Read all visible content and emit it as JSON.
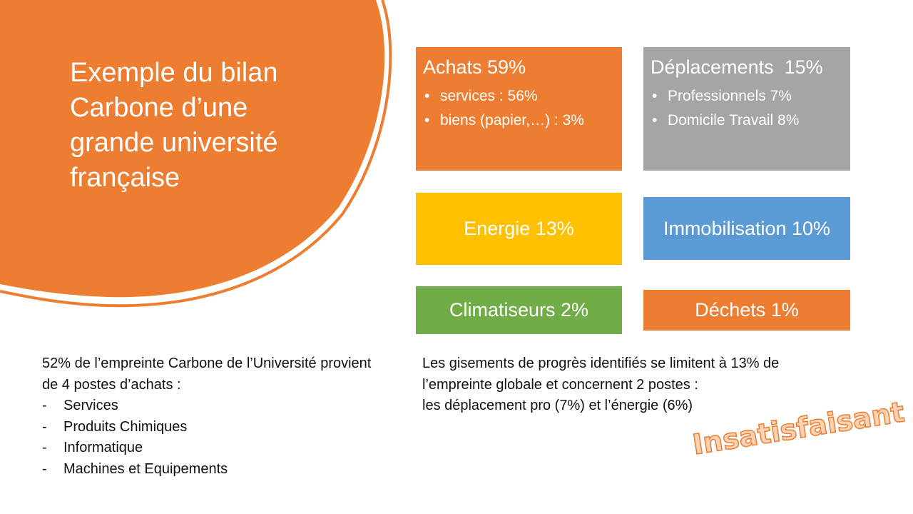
{
  "colors": {
    "orange": "#ed7d31",
    "gray": "#a5a5a5",
    "yellow": "#ffc000",
    "blue": "#5b9bd5",
    "green": "#70ad47"
  },
  "title": "Exemple du bilan Carbone d’une grande université française",
  "boxes": {
    "achats": {
      "label": "Achats 59%",
      "items": [
        "services : 56%",
        "biens (papier,…) : 3%"
      ]
    },
    "deplacements": {
      "label": "Déplacements  15%",
      "items": [
        "Professionnels 7%",
        "Domicile Travail 8%"
      ]
    },
    "energie": {
      "label": "Energie 13%"
    },
    "immobilisation": {
      "label": "Immobilisation 10%"
    },
    "climatiseurs": {
      "label": "Climatiseurs 2%"
    },
    "dechets": {
      "label": "Déchets 1%"
    }
  },
  "left_text": {
    "intro": "52% de l’empreinte Carbone de l’Université provient de 4 postes d’achats :",
    "items": [
      "Services",
      "Produits Chimiques",
      "Informatique",
      "Machines et Equipements"
    ]
  },
  "right_text": {
    "lines": [
      "Les gisements de progrès identifiés se limitent à 13% de",
      "l’empreinte globale et concernent 2 postes :",
      "les déplacement pro (7%) et l’énergie (6%)"
    ]
  },
  "stamp": "Insatisfaisant"
}
